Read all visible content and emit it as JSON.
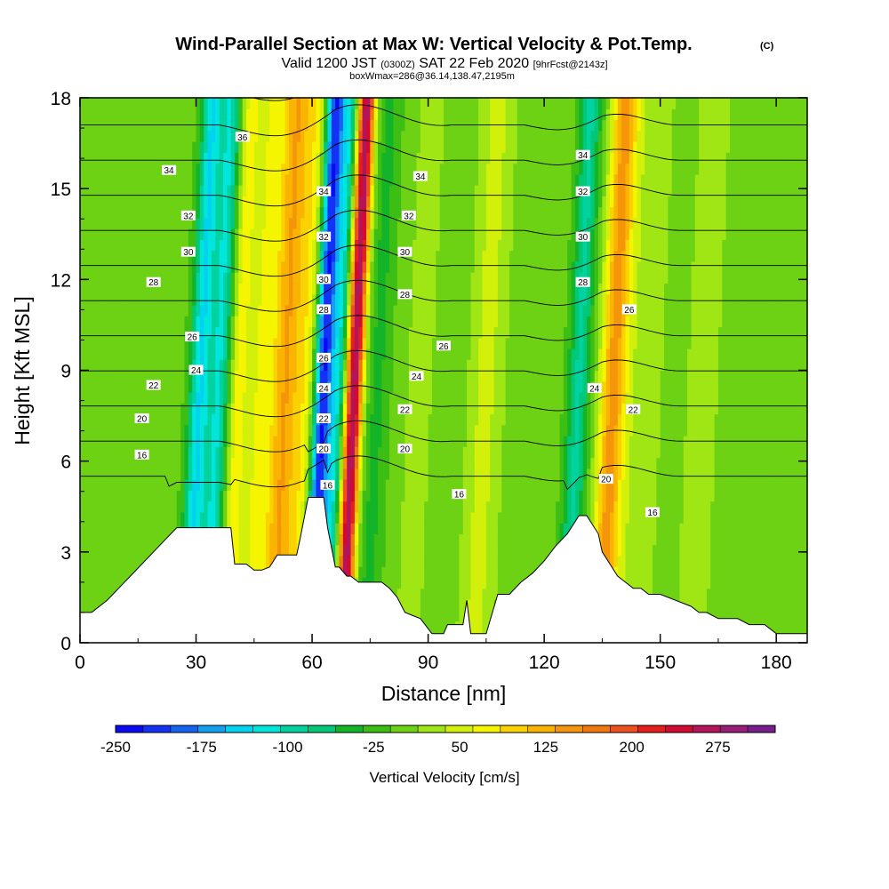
{
  "header": {
    "title": "Wind-Parallel Section at Max W: Vertical Velocity & Pot.Temp.",
    "copyright": "(C)",
    "valid_pre": "Valid 1200 JST",
    "valid_z": "(0300Z)",
    "valid_date": "SAT 22 Feb 2020",
    "fcst": "[9hrFcst@2143z]",
    "box": "boxWmax=286@36.14,138.47,2195m"
  },
  "chart_data": {
    "type": "heatmap",
    "xlabel": "Distance [nm]",
    "ylabel": "Height [Kft MSL]",
    "xlim": [
      0,
      188
    ],
    "ylim": [
      0,
      18
    ],
    "x_ticks": [
      0,
      30,
      60,
      90,
      120,
      150,
      180
    ],
    "x_tick_labels": [
      "0",
      "30",
      "60",
      "90",
      "120",
      "150",
      "180"
    ],
    "y_ticks": [
      0,
      3,
      6,
      9,
      12,
      15,
      18
    ],
    "y_tick_labels": [
      "0",
      "3",
      "6",
      "9",
      "12",
      "15",
      "18"
    ],
    "colorbar": {
      "label": "Vertical Velocity [cm/s]",
      "tick_labels": [
        "-250",
        "-175",
        "-100",
        "-25",
        "50",
        "125",
        "200",
        "275"
      ],
      "tick_values": [
        -250,
        -175,
        -100,
        -25,
        50,
        125,
        200,
        275
      ],
      "min": -250,
      "max": 325,
      "step": 25,
      "colors": [
        "#0a0af5",
        "#1432f5",
        "#1464f0",
        "#14a0f0",
        "#00d2f0",
        "#00e6dc",
        "#00d2a0",
        "#00c878",
        "#14b428",
        "#3cbe14",
        "#6ed214",
        "#a0e614",
        "#d2f00a",
        "#f5f500",
        "#fad200",
        "#fab400",
        "#f5960a",
        "#f0780a",
        "#f0501e",
        "#e61e1e",
        "#d20a32",
        "#b4145a",
        "#961e78",
        "#781e8c"
      ]
    },
    "terrain_profile": {
      "x": [
        0,
        3,
        7,
        10,
        13,
        16,
        19,
        22,
        25,
        28,
        31,
        35,
        37,
        39,
        40,
        43,
        45,
        47,
        49,
        51,
        56,
        57,
        59,
        63,
        64,
        66,
        67,
        69,
        70,
        72,
        75,
        78,
        80,
        82,
        84,
        86,
        88,
        91,
        94,
        95,
        97,
        99,
        100,
        101,
        102,
        104,
        105,
        108,
        111,
        114,
        117,
        120,
        123,
        126,
        128,
        129,
        130,
        131,
        134,
        135,
        137,
        139,
        141,
        143,
        145,
        147,
        150,
        154,
        158,
        160,
        162,
        165,
        170,
        173,
        177,
        180,
        188
      ],
      "kft": [
        1.0,
        1.0,
        1.4,
        1.8,
        2.2,
        2.6,
        3.0,
        3.4,
        3.8,
        3.8,
        3.8,
        3.8,
        3.8,
        3.8,
        2.6,
        2.6,
        2.4,
        2.4,
        2.5,
        2.9,
        2.9,
        3.5,
        4.8,
        4.8,
        3.8,
        2.5,
        2.5,
        2.2,
        2.2,
        2.0,
        2.0,
        2.0,
        1.8,
        1.5,
        1.0,
        0.9,
        0.8,
        0.3,
        0.3,
        0.6,
        0.6,
        0.6,
        1.4,
        0.3,
        0.3,
        0.3,
        0.3,
        1.6,
        1.6,
        2.0,
        2.3,
        2.7,
        3.2,
        3.6,
        4.0,
        4.2,
        4.2,
        4.2,
        3.6,
        3.0,
        2.6,
        2.2,
        2.0,
        1.8,
        1.8,
        1.6,
        1.6,
        1.4,
        1.2,
        1.0,
        1.0,
        0.8,
        0.8,
        0.6,
        0.6,
        0.3,
        0.3
      ]
    },
    "w_features": [
      {
        "x": 30,
        "w": 2.5,
        "amp": -130
      },
      {
        "x": 35,
        "w": 3.0,
        "amp": -110
      },
      {
        "x": 40,
        "w": 2.5,
        "amp": 80
      },
      {
        "x": 45,
        "w": 3.0,
        "amp": 60
      },
      {
        "x": 52,
        "w": 4.0,
        "amp": 140
      },
      {
        "x": 58,
        "w": 3.5,
        "amp": 70
      },
      {
        "x": 62,
        "w": 2.5,
        "amp": -250
      },
      {
        "x": 66,
        "w": 2.0,
        "amp": -100
      },
      {
        "x": 70,
        "w": 2.2,
        "amp": 290
      },
      {
        "x": 76,
        "w": 3.0,
        "amp": -40
      },
      {
        "x": 87,
        "w": 4.0,
        "amp": 30
      },
      {
        "x": 104,
        "w": 4.5,
        "amp": 50
      },
      {
        "x": 118,
        "w": 7.0,
        "amp": 15
      },
      {
        "x": 128,
        "w": 3.0,
        "amp": -90
      },
      {
        "x": 137,
        "w": 3.5,
        "amp": 150
      },
      {
        "x": 145,
        "w": 5.0,
        "amp": 35
      },
      {
        "x": 160,
        "w": 6.0,
        "amp": 25
      },
      {
        "x": 177,
        "w": 8.0,
        "amp": 10
      }
    ],
    "theta_contours": [
      {
        "value": 16,
        "labels": [
          [
            16,
            6.2
          ],
          [
            64,
            5.2
          ],
          [
            98,
            4.9
          ],
          [
            148,
            4.3
          ]
        ]
      },
      {
        "value": 18,
        "labels": []
      },
      {
        "value": 20,
        "labels": [
          [
            16,
            7.4
          ],
          [
            63,
            6.4
          ],
          [
            84,
            6.4
          ],
          [
            136,
            5.4
          ]
        ]
      },
      {
        "value": 22,
        "labels": [
          [
            19,
            8.5
          ],
          [
            63,
            7.4
          ],
          [
            84,
            7.7
          ],
          [
            143,
            7.7
          ]
        ]
      },
      {
        "value": 24,
        "labels": [
          [
            30,
            9.0
          ],
          [
            63,
            8.4
          ],
          [
            87,
            8.8
          ],
          [
            133,
            8.4
          ]
        ]
      },
      {
        "value": 26,
        "labels": [
          [
            29,
            10.1
          ],
          [
            63,
            9.4
          ],
          [
            94,
            9.8
          ],
          [
            142,
            11.0
          ]
        ]
      },
      {
        "value": 28,
        "labels": [
          [
            19,
            11.9
          ],
          [
            63,
            11.0
          ],
          [
            84,
            11.5
          ],
          [
            130,
            11.9
          ]
        ]
      },
      {
        "value": 30,
        "labels": [
          [
            28,
            12.9
          ],
          [
            63,
            12.0
          ],
          [
            84,
            12.9
          ],
          [
            130,
            13.4
          ]
        ]
      },
      {
        "value": 32,
        "labels": [
          [
            28,
            14.1
          ],
          [
            63,
            13.4
          ],
          [
            85,
            14.1
          ],
          [
            130,
            14.9
          ]
        ]
      },
      {
        "value": 34,
        "labels": [
          [
            23,
            15.6
          ],
          [
            63,
            14.9
          ],
          [
            88,
            15.4
          ],
          [
            130,
            16.1
          ]
        ]
      },
      {
        "value": 36,
        "labels": [
          [
            42,
            16.7
          ]
        ]
      },
      {
        "value": 38,
        "labels": []
      }
    ]
  }
}
